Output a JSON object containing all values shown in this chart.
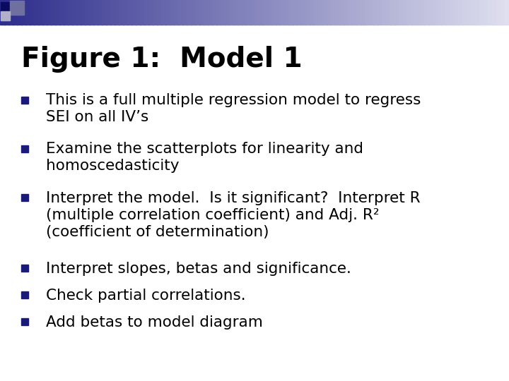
{
  "title": "Figure 1:  Model 1",
  "title_fontsize": 28,
  "title_color": "#000000",
  "bullet_color": "#1A1A7A",
  "text_color": "#000000",
  "text_fontsize": 15.5,
  "background_color": "#ffffff",
  "bullets": [
    "This is a full multiple regression model to regress\nSEI on all IV’s",
    "Examine the scatterplots for linearity and\nhomoscedasticity",
    "Interpret the model.  Is it significant?  Interpret R\n(multiple correlation coefficient) and Adj. R²\n(coefficient of determination)",
    "Interpret slopes, betas and significance.",
    "Check partial correlations.",
    "Add betas to model diagram"
  ],
  "header_bar_color": "#2D2D8C",
  "header_bar_fade_color": "#8888BB",
  "square_dark": "#0A0A60",
  "square_mid": "#7070A0",
  "square_light": "#B0B0CC"
}
